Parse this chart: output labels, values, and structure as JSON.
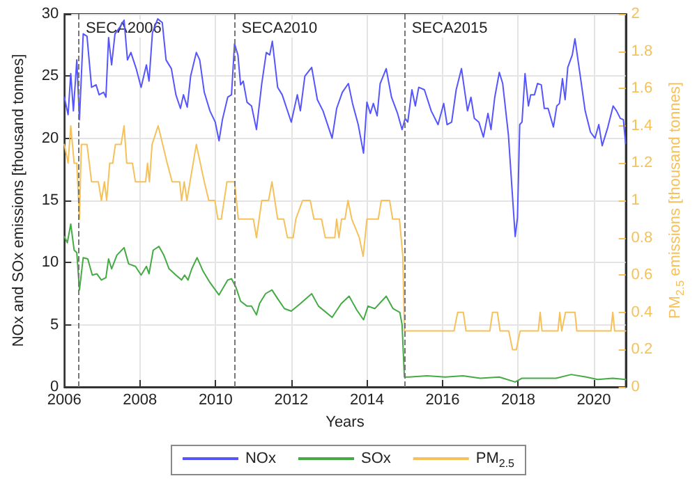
{
  "chart_data": {
    "type": "line",
    "xlabel": "Years",
    "ylabel": "NOx and SOx emissions [thousand tonnes]",
    "y2label": "PM$_{2.5}$ emissions [thousand tonnes]",
    "xlim": [
      2006,
      2020.84
    ],
    "xticks": [
      2006,
      2008,
      2010,
      2012,
      2014,
      2016,
      2018,
      2020
    ],
    "ylim": [
      0,
      30
    ],
    "yticks": [
      0,
      5,
      10,
      15,
      20,
      25,
      30
    ],
    "y2lim": [
      0,
      2
    ],
    "y2ticks": [
      0,
      0.2,
      0.4,
      0.6,
      0.8,
      1,
      1.2,
      1.4,
      1.6,
      1.8,
      2
    ],
    "grid": true,
    "legend": "bottom",
    "marker": "none",
    "line_style": "solid",
    "ref_lines": [
      {
        "axis": "x",
        "value": 2006.38,
        "label": "SECA2006",
        "color": "#777777",
        "line_style": "dashed"
      },
      {
        "axis": "x",
        "value": 2010.5,
        "label": "SECA2010",
        "color": "#777777",
        "line_style": "dashed"
      },
      {
        "axis": "x",
        "value": 2015.0,
        "label": "SECA2015",
        "color": "#777777",
        "line_style": "dashed"
      }
    ],
    "series": [
      {
        "name": "NOx",
        "color": "#5555ff",
        "x": [
          2006.0,
          2006.1,
          2006.17,
          2006.24,
          2006.33,
          2006.4,
          2006.5,
          2006.6,
          2006.72,
          2006.84,
          2006.92,
          2007.04,
          2007.1,
          2007.17,
          2007.25,
          2007.34,
          2007.46,
          2007.58,
          2007.67,
          2007.76,
          2007.9,
          2008.03,
          2008.17,
          2008.24,
          2008.33,
          2008.47,
          2008.59,
          2008.69,
          2008.83,
          2008.95,
          2009.07,
          2009.15,
          2009.25,
          2009.34,
          2009.49,
          2009.58,
          2009.7,
          2009.85,
          2009.99,
          2010.09,
          2010.18,
          2010.32,
          2010.42,
          2010.5,
          2010.59,
          2010.66,
          2010.73,
          2010.83,
          2010.95,
          2011.08,
          2011.22,
          2011.34,
          2011.43,
          2011.5,
          2011.64,
          2011.76,
          2012.0,
          2012.16,
          2012.24,
          2012.36,
          2012.54,
          2012.69,
          2012.84,
          2013.08,
          2013.2,
          2013.35,
          2013.51,
          2013.62,
          2013.77,
          2013.91,
          2014.0,
          2014.09,
          2014.17,
          2014.27,
          2014.35,
          2014.51,
          2014.65,
          2014.81,
          2014.93,
          2015.01,
          2015.08,
          2015.19,
          2015.28,
          2015.37,
          2015.52,
          2015.7,
          2015.88,
          2016.03,
          2016.12,
          2016.24,
          2016.36,
          2016.5,
          2016.66,
          2016.75,
          2016.84,
          2016.96,
          2017.08,
          2017.2,
          2017.28,
          2017.38,
          2017.5,
          2017.59,
          2017.74,
          2017.83,
          2017.92,
          2017.98,
          2018.04,
          2018.1,
          2018.18,
          2018.27,
          2018.33,
          2018.43,
          2018.51,
          2018.61,
          2018.69,
          2018.79,
          2018.93,
          2019.02,
          2019.09,
          2019.17,
          2019.24,
          2019.31,
          2019.43,
          2019.5,
          2019.65,
          2019.77,
          2019.91,
          2020.03,
          2020.13,
          2020.22,
          2020.37,
          2020.51,
          2020.6,
          2020.7,
          2020.78,
          2020.84
        ],
        "values": [
          23.3,
          21.9,
          25.2,
          22.2,
          26.3,
          21.5,
          28.4,
          28.2,
          24.1,
          24.3,
          23.5,
          23.7,
          23.3,
          28.1,
          25.9,
          28.4,
          28.9,
          29.5,
          26.3,
          26.9,
          25.6,
          24.1,
          25.9,
          24.6,
          28.5,
          29.6,
          29.3,
          26.3,
          25.6,
          23.5,
          22.4,
          23.5,
          22.5,
          25.0,
          26.9,
          26.3,
          23.7,
          22.2,
          21.3,
          19.8,
          21.5,
          23.3,
          23.5,
          27.6,
          26.7,
          24.3,
          24.6,
          22.9,
          22.6,
          20.7,
          24.4,
          26.9,
          26.7,
          27.8,
          24.1,
          23.5,
          21.3,
          23.5,
          22.2,
          25.0,
          25.7,
          23.1,
          22.2,
          20.0,
          22.4,
          23.7,
          24.4,
          22.8,
          21.1,
          18.8,
          22.9,
          22.0,
          22.8,
          21.8,
          24.4,
          25.6,
          23.3,
          22.0,
          20.7,
          21.6,
          21.3,
          23.9,
          22.6,
          24.1,
          23.9,
          22.2,
          21.1,
          22.8,
          21.1,
          21.3,
          23.9,
          25.6,
          22.2,
          23.3,
          21.6,
          21.3,
          20.1,
          22.0,
          20.7,
          23.3,
          25.3,
          24.4,
          20.3,
          16.2,
          12.1,
          13.6,
          21.1,
          21.3,
          25.2,
          22.6,
          23.5,
          23.5,
          24.4,
          24.3,
          22.4,
          22.4,
          20.9,
          22.6,
          22.8,
          24.8,
          23.1,
          25.7,
          26.7,
          28.0,
          24.8,
          22.2,
          20.5,
          20.0,
          21.1,
          19.4,
          20.9,
          22.6,
          22.2,
          21.6,
          21.5,
          19.6
        ]
      },
      {
        "name": "SOx",
        "color": "#44aa44",
        "x": [
          2006.0,
          2006.08,
          2006.17,
          2006.26,
          2006.33,
          2006.4,
          2006.5,
          2006.62,
          2006.74,
          2006.86,
          2006.98,
          2007.1,
          2007.17,
          2007.25,
          2007.39,
          2007.58,
          2007.7,
          2007.88,
          2008.03,
          2008.17,
          2008.24,
          2008.35,
          2008.5,
          2008.63,
          2008.77,
          2008.95,
          2009.1,
          2009.18,
          2009.27,
          2009.37,
          2009.51,
          2009.67,
          2009.85,
          2010.09,
          2010.32,
          2010.42,
          2010.54,
          2010.66,
          2010.83,
          2010.95,
          2011.08,
          2011.16,
          2011.32,
          2011.49,
          2011.64,
          2011.82,
          2012.0,
          2012.24,
          2012.54,
          2012.72,
          2013.08,
          2013.32,
          2013.53,
          2013.73,
          2013.91,
          2014.03,
          2014.21,
          2014.39,
          2014.51,
          2014.69,
          2014.87,
          2014.93,
          2014.99,
          2015.11,
          2015.59,
          2016.07,
          2016.54,
          2017.0,
          2017.5,
          2017.92,
          2018.1,
          2018.6,
          2019.0,
          2019.4,
          2019.8,
          2020.1,
          2020.5,
          2020.84
        ],
        "values": [
          12.1,
          11.6,
          13.1,
          11.0,
          10.8,
          7.8,
          10.4,
          10.3,
          9.0,
          9.1,
          8.6,
          8.8,
          10.3,
          9.5,
          10.6,
          11.2,
          9.9,
          9.7,
          9.0,
          9.7,
          9.1,
          11.0,
          11.3,
          10.6,
          9.5,
          9.0,
          8.6,
          9.0,
          8.6,
          9.5,
          10.4,
          9.3,
          8.4,
          7.4,
          8.6,
          8.7,
          8.0,
          6.9,
          6.5,
          6.5,
          5.8,
          6.7,
          7.5,
          7.8,
          7.1,
          6.3,
          6.1,
          6.7,
          7.5,
          6.5,
          5.6,
          6.7,
          7.3,
          6.2,
          5.4,
          6.5,
          6.3,
          6.9,
          7.3,
          6.3,
          6.0,
          5.0,
          0.8,
          0.8,
          0.9,
          0.8,
          0.9,
          0.7,
          0.8,
          0.4,
          0.7,
          0.7,
          0.7,
          1.0,
          0.8,
          0.6,
          0.7,
          0.6
        ]
      },
      {
        "name": "PM$_{2.5}$",
        "color": "#f5c15a",
        "axis": "y2",
        "x": [
          2006.0,
          2006.1,
          2006.17,
          2006.26,
          2006.33,
          2006.4,
          2006.45,
          2006.6,
          2006.72,
          2006.9,
          2006.98,
          2007.06,
          2007.12,
          2007.2,
          2007.28,
          2007.35,
          2007.5,
          2007.58,
          2007.65,
          2007.8,
          2007.88,
          2008.15,
          2008.2,
          2008.25,
          2008.32,
          2008.48,
          2008.6,
          2008.72,
          2008.85,
          2009.05,
          2009.1,
          2009.17,
          2009.24,
          2009.49,
          2009.7,
          2009.82,
          2009.98,
          2010.06,
          2010.15,
          2010.3,
          2010.5,
          2010.6,
          2011.0,
          2011.08,
          2011.22,
          2011.4,
          2011.49,
          2011.64,
          2011.8,
          2011.9,
          2012.05,
          2012.12,
          2012.3,
          2012.5,
          2012.6,
          2012.8,
          2012.9,
          2013.15,
          2013.2,
          2013.26,
          2013.33,
          2013.42,
          2013.5,
          2013.6,
          2013.8,
          2013.9,
          2014.0,
          2014.3,
          2014.38,
          2014.6,
          2014.68,
          2014.86,
          2014.95,
          2014.99,
          2016.3,
          2016.4,
          2016.55,
          2016.62,
          2017.25,
          2017.32,
          2017.45,
          2017.52,
          2017.75,
          2017.85,
          2017.95,
          2018.05,
          2018.53,
          2018.58,
          2018.63,
          2019.05,
          2019.1,
          2019.15,
          2019.25,
          2019.5,
          2019.55,
          2020.45,
          2020.5,
          2020.55,
          2020.84
        ],
        "values": [
          1.3,
          1.2,
          1.4,
          1.2,
          1.2,
          0.9,
          1.3,
          1.3,
          1.1,
          1.1,
          1.0,
          1.1,
          1.0,
          1.2,
          1.2,
          1.3,
          1.3,
          1.4,
          1.2,
          1.2,
          1.1,
          1.1,
          1.2,
          1.1,
          1.3,
          1.4,
          1.3,
          1.2,
          1.1,
          1.1,
          1.0,
          1.1,
          1.0,
          1.3,
          1.1,
          1.0,
          1.0,
          0.9,
          0.9,
          1.1,
          1.1,
          0.9,
          0.9,
          0.8,
          1.0,
          1.0,
          1.1,
          0.9,
          0.9,
          0.8,
          0.8,
          0.9,
          1.0,
          1.0,
          0.9,
          0.9,
          0.8,
          0.8,
          0.9,
          0.8,
          0.9,
          0.9,
          1.0,
          0.9,
          0.8,
          0.7,
          0.9,
          0.9,
          1.0,
          1.0,
          0.9,
          0.9,
          0.7,
          0.3,
          0.3,
          0.4,
          0.4,
          0.3,
          0.3,
          0.4,
          0.4,
          0.3,
          0.3,
          0.2,
          0.2,
          0.3,
          0.3,
          0.4,
          0.3,
          0.3,
          0.4,
          0.3,
          0.4,
          0.4,
          0.3,
          0.3,
          0.4,
          0.3,
          0.3
        ]
      }
    ]
  }
}
